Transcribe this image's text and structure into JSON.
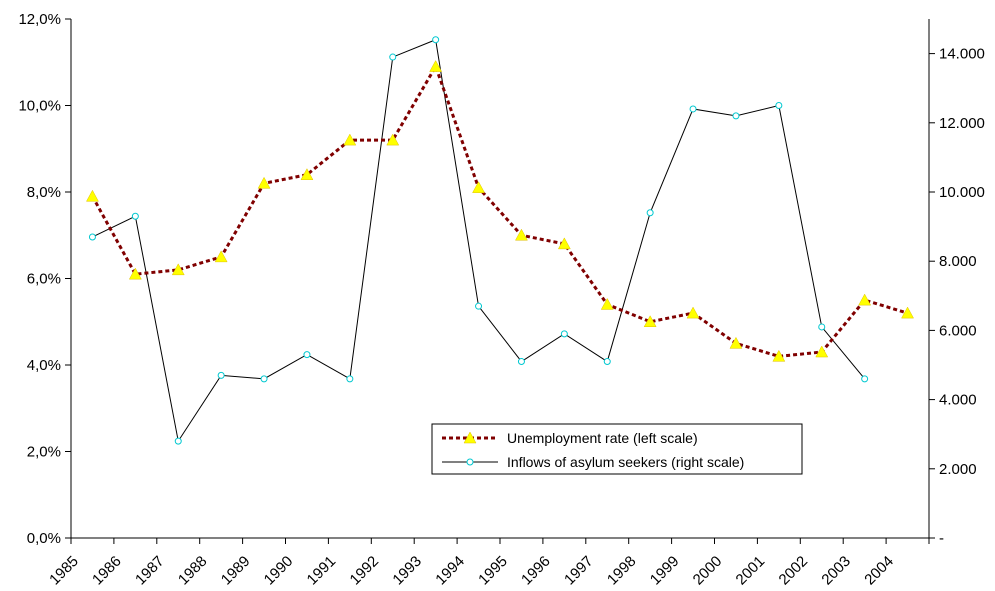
{
  "chart_data": {
    "type": "line",
    "title": "",
    "xlabel": "",
    "ylabel_left": "",
    "ylabel_right": "",
    "categories": [
      "1985",
      "1986",
      "1987",
      "1988",
      "1989",
      "1990",
      "1991",
      "1992",
      "1993",
      "1994",
      "1995",
      "1996",
      "1997",
      "1998",
      "1999",
      "2000",
      "2001",
      "2002",
      "2003",
      "2004"
    ],
    "left_axis": {
      "min": 0,
      "max": 12,
      "step": 2,
      "tick_labels": [
        "0,0%",
        "2,0%",
        "4,0%",
        "6,0%",
        "8,0%",
        "10,0%",
        "12,0%"
      ]
    },
    "right_axis": {
      "min": 0,
      "max": 15000,
      "step": 2000,
      "tick_labels": [
        "-",
        "2.000",
        "4.000",
        "6.000",
        "8.000",
        "10.000",
        "12.000",
        "14.000"
      ]
    },
    "series": [
      {
        "name": "Unemployment rate (left scale)",
        "axis": "left",
        "unit": "%",
        "color": "#800000",
        "marker_color": "#ffff00",
        "values": [
          7.9,
          6.1,
          6.2,
          6.5,
          8.2,
          8.4,
          9.2,
          9.2,
          10.9,
          8.1,
          7.0,
          6.8,
          5.4,
          5.0,
          5.2,
          4.5,
          4.2,
          4.3,
          5.5,
          5.2
        ]
      },
      {
        "name": "Inflows of asylum seekers (right scale)",
        "axis": "right",
        "color": "#000000",
        "marker_color": "#00ffff",
        "values": [
          8700,
          9300,
          2800,
          4700,
          4600,
          5300,
          4600,
          13900,
          14400,
          6700,
          5100,
          5900,
          5100,
          9400,
          12400,
          12200,
          12500,
          6100,
          4600,
          null
        ]
      }
    ],
    "legend_position": "bottom-center-right",
    "grid": false
  }
}
